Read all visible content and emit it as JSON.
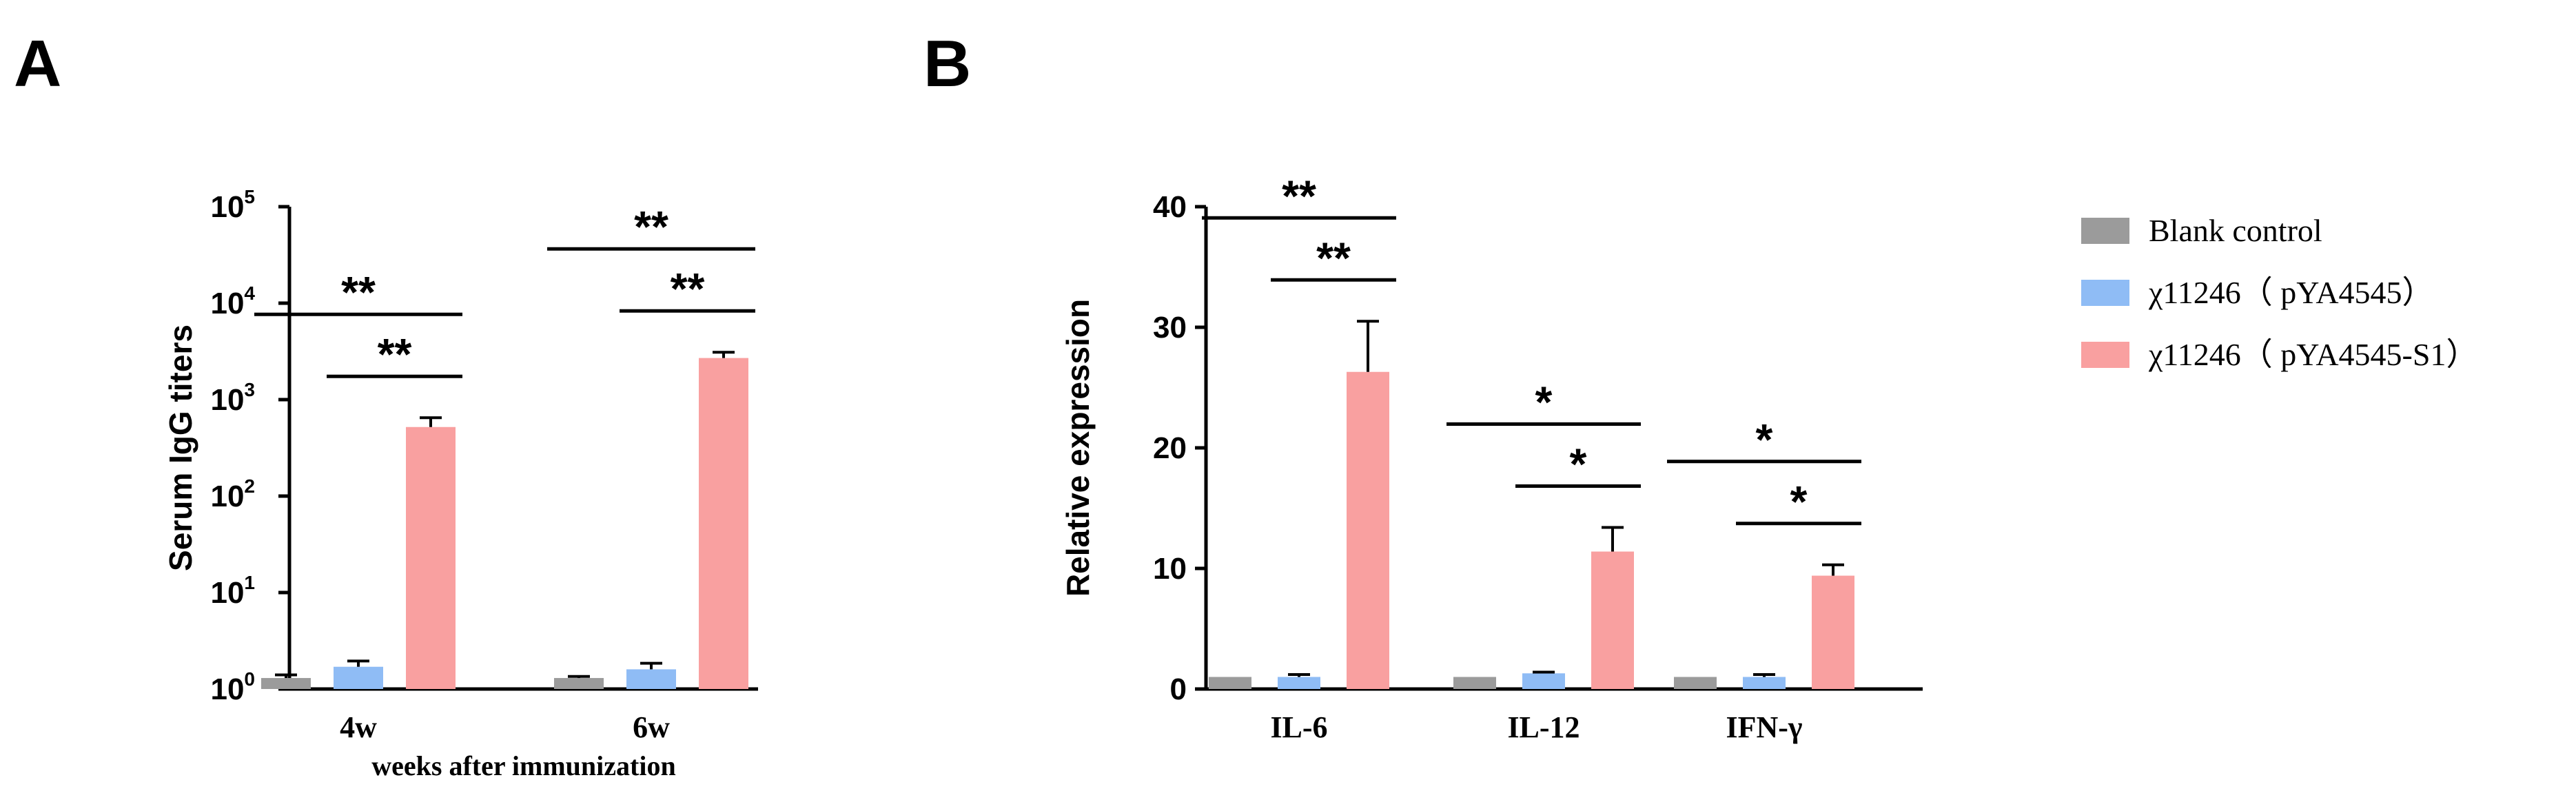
{
  "colors": {
    "blank": "#9b9b9b",
    "vector": "#8fbcf5",
    "s1": "#f9a0a0"
  },
  "legend": {
    "items": [
      {
        "label": "Blank control",
        "color": "#9b9b9b"
      },
      {
        "label": "χ11246（ pYA4545）",
        "color": "#8fbcf5"
      },
      {
        "label": "χ11246（ pYA4545-S1）",
        "color": "#f9a0a0"
      }
    ]
  },
  "chart_data": [
    {
      "panel": "A",
      "type": "bar",
      "yscale": "log",
      "ylabel": "Serum IgG titers",
      "xlabel": "weeks after immunization",
      "categories": [
        "4w",
        "6w"
      ],
      "ylim": [
        1,
        100000
      ],
      "yticks": [
        {
          "base": "10",
          "exp": "0",
          "value": 1
        },
        {
          "base": "10",
          "exp": "1",
          "value": 10
        },
        {
          "base": "10",
          "exp": "2",
          "value": 100
        },
        {
          "base": "10",
          "exp": "3",
          "value": 1000
        },
        {
          "base": "10",
          "exp": "4",
          "value": 10000
        },
        {
          "base": "10",
          "exp": "5",
          "value": 100000
        }
      ],
      "series": [
        {
          "name": "Blank control",
          "values": [
            1.3,
            1.3
          ],
          "errors": [
            0.1,
            0.05
          ]
        },
        {
          "name": "χ11246（ pYA4545）",
          "values": [
            1.7,
            1.6
          ],
          "errors": [
            0.25,
            0.25
          ]
        },
        {
          "name": "χ11246（ pYA4545-S1）",
          "values": [
            520,
            2700
          ],
          "errors": [
            130,
            400
          ]
        }
      ],
      "significance": [
        {
          "category": 0,
          "from": 0,
          "to": 2,
          "level": 1.75,
          "label": "**"
        },
        {
          "category": 0,
          "from": 1,
          "to": 2,
          "level": 1.0,
          "label": "**"
        },
        {
          "category": 1,
          "from": 0,
          "to": 2,
          "level": 1.75,
          "label": "**"
        },
        {
          "category": 1,
          "from": 1,
          "to": 2,
          "level": 1.0,
          "label": "**"
        }
      ]
    },
    {
      "panel": "B",
      "type": "bar",
      "yscale": "linear",
      "ylabel": "Relative expression",
      "xlabel": "",
      "categories": [
        "IL-6",
        "IL-12",
        "IFN-γ"
      ],
      "ylim": [
        0,
        40
      ],
      "yticks": [
        {
          "label": "0",
          "value": 0
        },
        {
          "label": "10",
          "value": 10
        },
        {
          "label": "20",
          "value": 20
        },
        {
          "label": "30",
          "value": 30
        },
        {
          "label": "40",
          "value": 40
        }
      ],
      "series": [
        {
          "name": "Blank control",
          "values": [
            1.0,
            1.0,
            1.0
          ],
          "errors": [
            0,
            0,
            0
          ]
        },
        {
          "name": "χ11246（ pYA4545）",
          "values": [
            1.0,
            1.3,
            1.0
          ],
          "errors": [
            0.2,
            0.1,
            0.2
          ]
        },
        {
          "name": "χ11246（ pYA4545-S1）",
          "values": [
            26.3,
            11.4,
            9.4
          ],
          "errors": [
            4.2,
            2.0,
            0.9
          ]
        }
      ],
      "significance": [
        {
          "category": 0,
          "from": 0,
          "to": 2,
          "level": 1.75,
          "label": "**"
        },
        {
          "category": 0,
          "from": 1,
          "to": 2,
          "level": 1.0,
          "label": "**"
        },
        {
          "category": 1,
          "from": 0,
          "to": 2,
          "level": 1.75,
          "label": "*"
        },
        {
          "category": 1,
          "from": 1,
          "to": 2,
          "level": 1.0,
          "label": "*"
        },
        {
          "category": 2,
          "from": 0,
          "to": 2,
          "level": 1.75,
          "label": "*"
        },
        {
          "category": 2,
          "from": 1,
          "to": 2,
          "level": 1.0,
          "label": "*"
        }
      ]
    }
  ]
}
